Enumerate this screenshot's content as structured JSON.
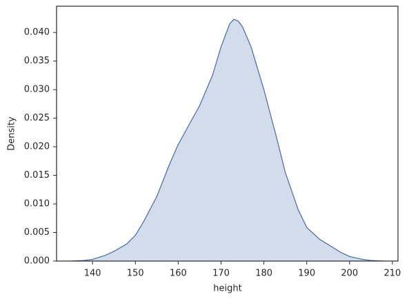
{
  "chart_data": {
    "type": "kde",
    "x": [
      135,
      138,
      140,
      143,
      145,
      148,
      150,
      152,
      155,
      158,
      160,
      163,
      165,
      168,
      170,
      172,
      173,
      174,
      175,
      177,
      180,
      183,
      185,
      188,
      190,
      193,
      195,
      198,
      200,
      203,
      205,
      208
    ],
    "series": [
      {
        "color": "#4c72b0",
        "values": [
          0.0,
          0.0001,
          0.0003,
          0.001,
          0.0017,
          0.003,
          0.0045,
          0.007,
          0.0113,
          0.017,
          0.0204,
          0.0245,
          0.0272,
          0.0325,
          0.0375,
          0.0415,
          0.0423,
          0.042,
          0.041,
          0.0375,
          0.03,
          0.0215,
          0.0155,
          0.009,
          0.0059,
          0.0038,
          0.0029,
          0.0015,
          0.0008,
          0.0003,
          0.0001,
          0.0
        ]
      }
    ],
    "xlabel": "height",
    "ylabel": "Density",
    "xlim": [
      131.6,
      211.3
    ],
    "ylim": [
      0,
      0.0446
    ],
    "xticks": [
      140,
      150,
      160,
      170,
      180,
      190,
      200,
      210
    ],
    "yticks": [
      {
        "value": 0,
        "label": "0.000"
      },
      {
        "value": 0.005,
        "label": "0.005"
      },
      {
        "value": 0.01,
        "label": "0.010"
      },
      {
        "value": 0.015,
        "label": "0.015"
      },
      {
        "value": 0.02,
        "label": "0.020"
      },
      {
        "value": 0.025,
        "label": "0.025"
      },
      {
        "value": 0.03,
        "label": "0.030"
      },
      {
        "value": 0.035,
        "label": "0.035"
      },
      {
        "value": 0.04,
        "label": "0.040"
      }
    ],
    "fill": true,
    "grid": false
  }
}
